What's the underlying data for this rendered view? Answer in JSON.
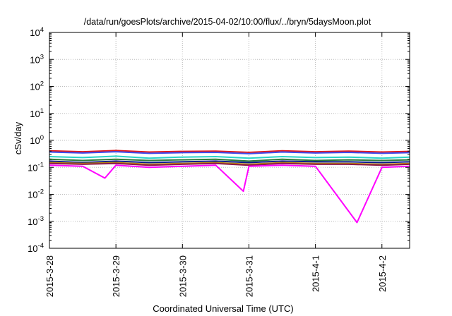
{
  "chart_data": {
    "type": "line",
    "title": "/data/run/goesPlots/archive/2015-04-02/10:00/flux/../bryn/5daysMoon.plot",
    "xlabel": "Coordinated Universal Time (UTC)",
    "ylabel": "cSv/day",
    "yscale": "log",
    "ylim": [
      0.0001,
      10000
    ],
    "xlim": [
      "2015-03-28",
      "2015-04-02 10:00"
    ],
    "grid": true,
    "xticks": [
      "2015-3-28",
      "2015-3-29",
      "2015-3-30",
      "2015-3-31",
      "2015-4-1",
      "2015-4-2"
    ],
    "yticks": [
      {
        "base": "10",
        "exp": "-4",
        "value": 0.0001
      },
      {
        "base": "10",
        "exp": "-3",
        "value": 0.001
      },
      {
        "base": "10",
        "exp": "-2",
        "value": 0.01
      },
      {
        "base": "10",
        "exp": "-1",
        "value": 0.1
      },
      {
        "base": "10",
        "exp": "0",
        "value": 1
      },
      {
        "base": "10",
        "exp": "1",
        "value": 10
      },
      {
        "base": "10",
        "exp": "2",
        "value": 100
      },
      {
        "base": "10",
        "exp": "3",
        "value": 1000
      },
      {
        "base": "10",
        "exp": "4",
        "value": 10000
      }
    ],
    "series": [
      {
        "color": "#e41a1c",
        "x": [
          "2015-03-28 00:00",
          "2015-03-28 12:00",
          "2015-03-29 00:00",
          "2015-03-29 12:00",
          "2015-03-30 00:00",
          "2015-03-30 12:00",
          "2015-03-31 00:00",
          "2015-03-31 12:00",
          "2015-04-01 00:00",
          "2015-04-01 12:00",
          "2015-04-02 00:00",
          "2015-04-02 10:00"
        ],
        "y": [
          0.41,
          0.38,
          0.42,
          0.37,
          0.39,
          0.4,
          0.36,
          0.41,
          0.38,
          0.4,
          0.37,
          0.39
        ]
      },
      {
        "color": "#3b4cf0",
        "x": [
          "2015-03-28 00:00",
          "2015-03-28 12:00",
          "2015-03-29 00:00",
          "2015-03-29 12:00",
          "2015-03-30 00:00",
          "2015-03-30 12:00",
          "2015-03-31 00:00",
          "2015-03-31 12:00",
          "2015-04-01 00:00",
          "2015-04-01 12:00",
          "2015-04-02 00:00",
          "2015-04-02 10:00"
        ],
        "y": [
          0.37,
          0.34,
          0.38,
          0.33,
          0.35,
          0.36,
          0.32,
          0.37,
          0.34,
          0.36,
          0.33,
          0.35
        ]
      },
      {
        "color": "#27d3c8",
        "x": [
          "2015-03-28 00:00",
          "2015-03-28 12:00",
          "2015-03-29 00:00",
          "2015-03-29 12:00",
          "2015-03-30 00:00",
          "2015-03-30 12:00",
          "2015-03-31 00:00",
          "2015-03-31 12:00",
          "2015-04-01 00:00",
          "2015-04-01 12:00",
          "2015-04-02 00:00",
          "2015-04-02 10:00"
        ],
        "y": [
          0.25,
          0.23,
          0.26,
          0.22,
          0.24,
          0.25,
          0.22,
          0.25,
          0.23,
          0.24,
          0.22,
          0.24
        ]
      },
      {
        "color": "#2f7d3a",
        "x": [
          "2015-03-28 00:00",
          "2015-03-28 12:00",
          "2015-03-29 00:00",
          "2015-03-29 12:00",
          "2015-03-30 00:00",
          "2015-03-30 12:00",
          "2015-03-31 00:00",
          "2015-03-31 12:00",
          "2015-04-01 00:00",
          "2015-04-01 12:00",
          "2015-04-02 00:00",
          "2015-04-02 10:00"
        ],
        "y": [
          0.2,
          0.18,
          0.2,
          0.18,
          0.19,
          0.2,
          0.17,
          0.2,
          0.18,
          0.19,
          0.18,
          0.19
        ]
      },
      {
        "color": "#0b1a8a",
        "x": [
          "2015-03-28 00:00",
          "2015-03-28 12:00",
          "2015-03-29 00:00",
          "2015-03-29 12:00",
          "2015-03-30 00:00",
          "2015-03-30 12:00",
          "2015-03-31 00:00",
          "2015-03-31 12:00",
          "2015-04-01 00:00",
          "2015-04-01 12:00",
          "2015-04-02 00:00",
          "2015-04-02 10:00"
        ],
        "y": [
          0.17,
          0.15,
          0.17,
          0.15,
          0.16,
          0.17,
          0.15,
          0.17,
          0.16,
          0.16,
          0.15,
          0.16
        ]
      },
      {
        "color": "#b8860b",
        "x": [
          "2015-03-28 00:00",
          "2015-03-28 12:00",
          "2015-03-29 00:00",
          "2015-03-29 12:00",
          "2015-03-30 00:00",
          "2015-03-30 12:00",
          "2015-03-31 00:00",
          "2015-03-31 12:00",
          "2015-04-01 00:00",
          "2015-04-01 12:00",
          "2015-04-02 00:00",
          "2015-04-02 10:00"
        ],
        "y": [
          0.15,
          0.14,
          0.15,
          0.13,
          0.14,
          0.15,
          0.13,
          0.15,
          0.14,
          0.14,
          0.13,
          0.14
        ]
      },
      {
        "color": "#8b1a4a",
        "x": [
          "2015-03-28 00:00",
          "2015-03-28 12:00",
          "2015-03-29 00:00",
          "2015-03-29 12:00",
          "2015-03-30 00:00",
          "2015-03-30 12:00",
          "2015-03-31 00:00",
          "2015-03-31 12:00",
          "2015-04-01 00:00",
          "2015-04-01 12:00",
          "2015-04-02 00:00",
          "2015-04-02 10:00"
        ],
        "y": [
          0.14,
          0.13,
          0.14,
          0.12,
          0.13,
          0.14,
          0.12,
          0.14,
          0.13,
          0.13,
          0.12,
          0.13
        ]
      },
      {
        "color": "#ff00ff",
        "x": [
          "2015-03-28 00:00",
          "2015-03-28 12:00",
          "2015-03-28 20:00",
          "2015-03-29 00:00",
          "2015-03-29 12:00",
          "2015-03-30 00:00",
          "2015-03-30 12:00",
          "2015-03-30 22:00",
          "2015-03-31 00:00",
          "2015-03-31 12:00",
          "2015-04-01 00:00",
          "2015-04-01 15:00",
          "2015-04-02 00:00",
          "2015-04-02 10:00"
        ],
        "y": [
          0.12,
          0.11,
          0.04,
          0.12,
          0.1,
          0.11,
          0.12,
          0.013,
          0.11,
          0.12,
          0.11,
          0.0009,
          0.1,
          0.11
        ]
      }
    ]
  }
}
